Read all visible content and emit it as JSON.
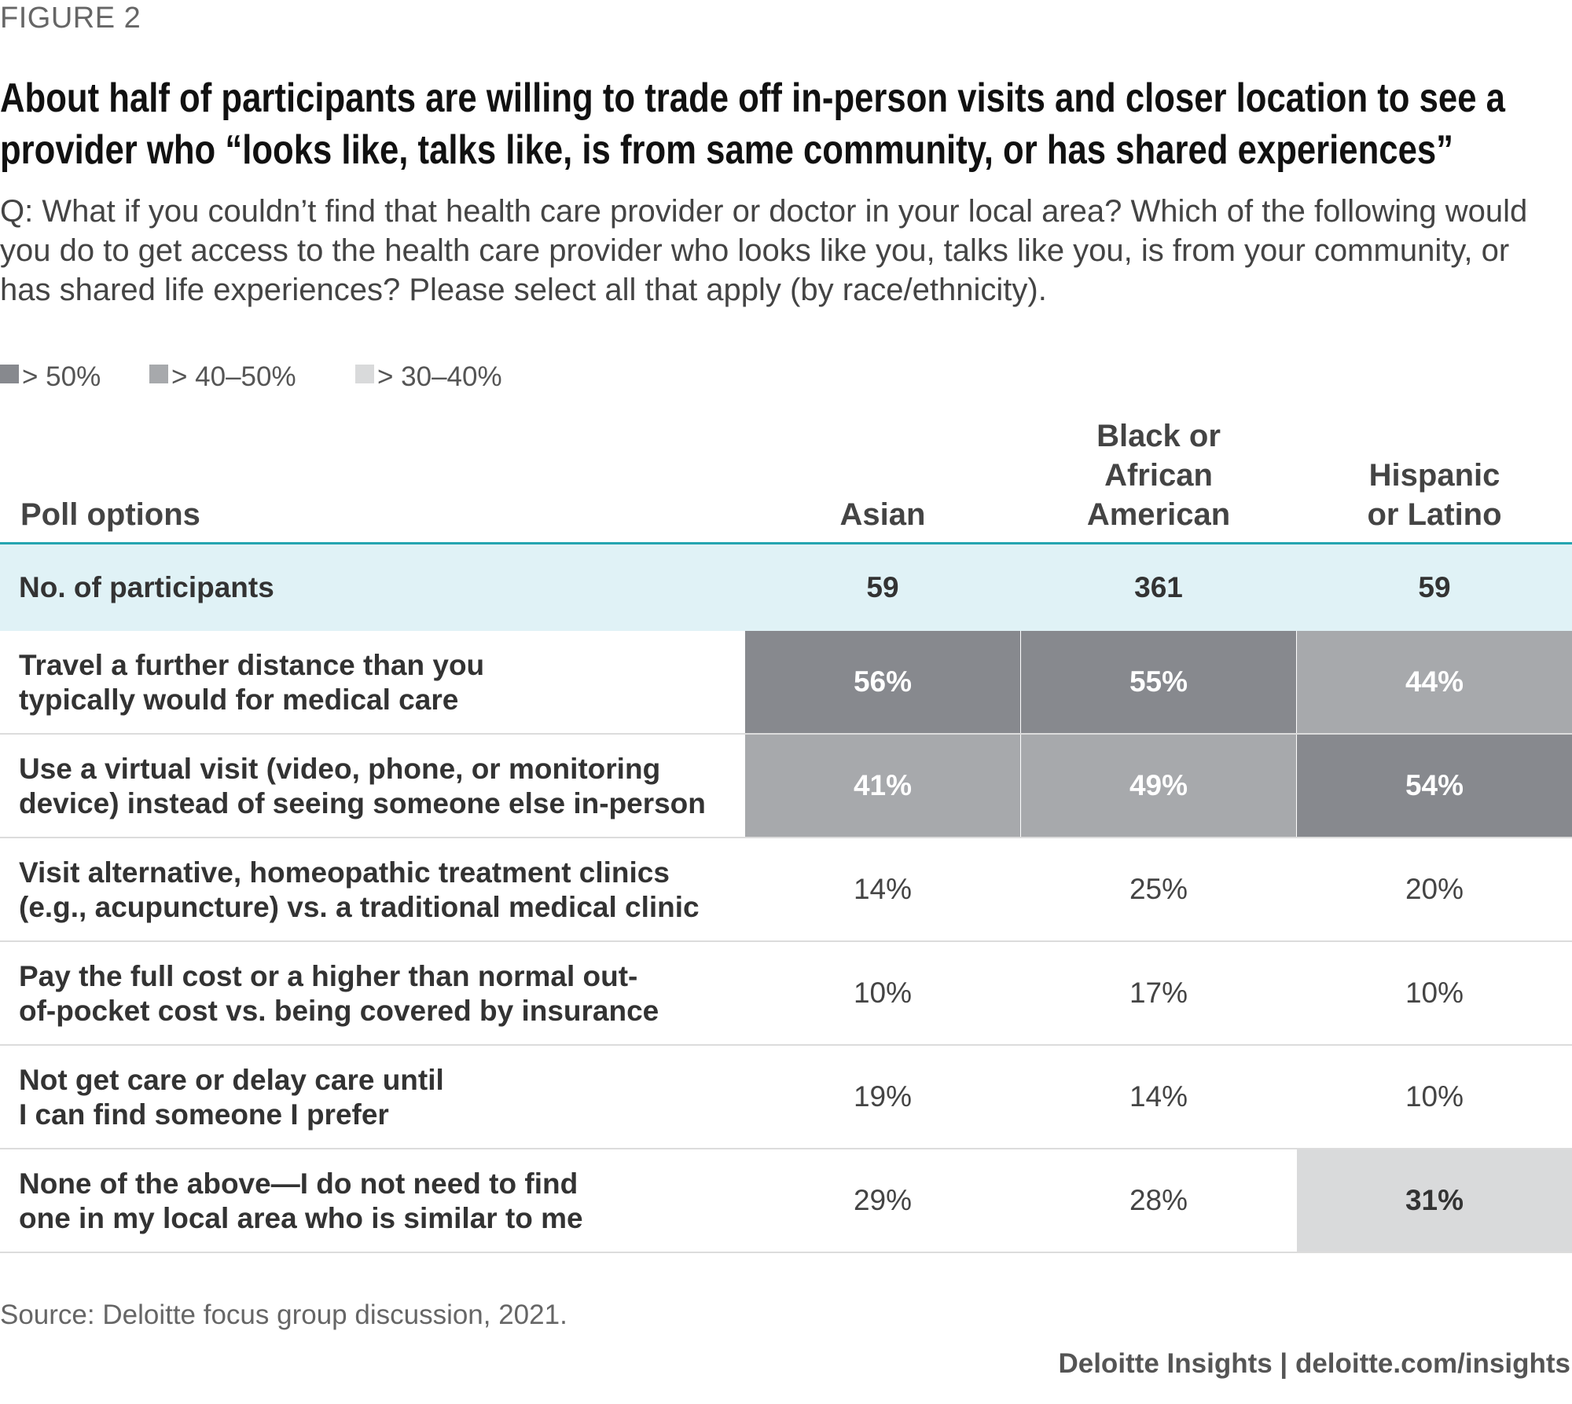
{
  "figure_label": "FIGURE 2",
  "title": "About half of participants are willing to trade off in-person visits and closer location to see a provider who “looks like, talks like, is from same community, or has shared experiences”",
  "question": "Q: What if you couldn’t find that health care provider or doctor in your local area? Which of the following would you do to get access to the health care provider who looks like you, talks like you, is from your community, or has shared life experiences? Please select all that apply (by race/ethnicity).",
  "legend": [
    {
      "label": "> 50%",
      "color": "#87898e"
    },
    {
      "label": "> 40–50%",
      "color": "#a7a9ac"
    },
    {
      "label": "> 30–40%",
      "color": "#d9dadb"
    }
  ],
  "colors": {
    "teal": "#25a5b0",
    "participants_bg": "#e0f2f6",
    "dark_text": "#ffffff",
    "plain_text": "#444444"
  },
  "chart_data": {
    "type": "table",
    "title": "About half of participants are willing to trade off in-person visits and closer location to see a provider who “looks like, talks like, is from same community, or has shared experiences”",
    "poll_header": "Poll options",
    "columns": [
      "Asian",
      "Black or African American",
      "Hispanic or Latino"
    ],
    "column_display": [
      "Asian",
      "Black or\nAfrican\nAmerican",
      "Hispanic\nor Latino"
    ],
    "participants": {
      "label": "No. of participants",
      "values": [
        "59",
        "361",
        "59"
      ]
    },
    "rows": [
      {
        "label": "Travel a further distance than you typically would for medical care",
        "label_lines": [
          "Travel a further distance than you",
          "typically would for medical care"
        ],
        "values": [
          56,
          55,
          44
        ]
      },
      {
        "label": "Use a virtual visit (video, phone, or monitoring device) instead of seeing someone else in-person",
        "label_lines": [
          "Use a virtual visit (video, phone, or monitoring",
          "device) instead of seeing someone else in-person"
        ],
        "values": [
          41,
          49,
          54
        ]
      },
      {
        "label": "Visit alternative, homeopathic treatment clinics (e.g., acupuncture) vs. a traditional medical clinic",
        "label_lines": [
          "Visit alternative, homeopathic treatment clinics",
          "(e.g., acupuncture) vs. a traditional medical clinic"
        ],
        "values": [
          14,
          25,
          20
        ]
      },
      {
        "label": "Pay the full cost or a higher than normal out-of-pocket cost vs. being covered by insurance",
        "label_lines": [
          "Pay the full cost or a higher than normal out-",
          "of-pocket cost vs. being covered by insurance"
        ],
        "values": [
          10,
          17,
          10
        ]
      },
      {
        "label": "Not get care or delay care until I can find someone I prefer",
        "label_lines": [
          "Not get care or delay care until",
          "I can find someone I prefer"
        ],
        "values": [
          19,
          14,
          10
        ]
      },
      {
        "label": "None of the above—I do not need to find one in my local area who is similar to me",
        "label_lines": [
          "None of the above—I do not need to find",
          "one in my local area who is similar to me"
        ],
        "values": [
          29,
          28,
          31
        ]
      }
    ],
    "value_suffix": "%"
  },
  "source": "Source: Deloitte focus group discussion, 2021.",
  "credit": "Deloitte Insights | deloitte.com/insights"
}
